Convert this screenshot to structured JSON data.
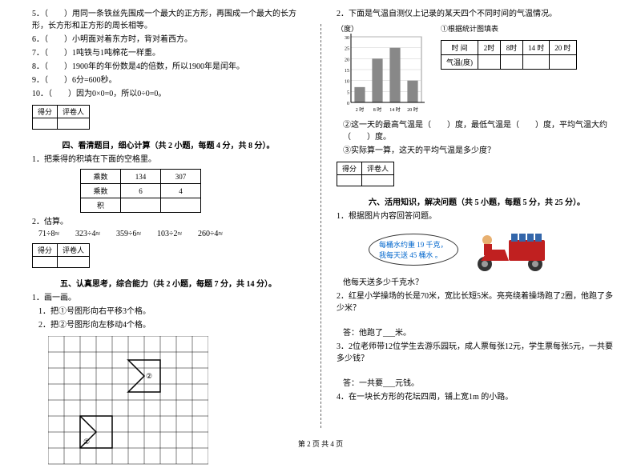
{
  "left": {
    "qs": [
      "5．（　　）用同一条铁丝先围成一个最大的正方形，再围成一个最大的长方形，长方形和正方形的周长相等。",
      "6．（　　）小明面对着东方时，背对着西方。",
      "7．（　　）1吨铁与1吨棉花一样重。",
      "8．（　　）1900年的年份数是4的倍数，所以1900年是闰年。",
      "9．（　　）6分=600秒。",
      "10．（　　）因为0×0=0，所以0÷0=0。"
    ],
    "score_h1": "得分",
    "score_h2": "评卷人",
    "sec4": "四、看清题目，细心计算（共 2 小题，每题 4 分，共 8 分）。",
    "q4_1": "1．把乘得的积填在下面的空格里。",
    "tbl": {
      "r1": [
        "乘数",
        "134",
        "307"
      ],
      "r2": [
        "乘数",
        "6",
        "4"
      ],
      "r3": [
        "积",
        "",
        ""
      ]
    },
    "q4_2": "2．估算。",
    "est": [
      "71÷8≈",
      "323÷4≈",
      "359÷6≈",
      "103÷2≈",
      "260÷4≈"
    ],
    "sec5": "五、认真思考，综合能力（共 2 小题，每题 7 分，共 14 分）。",
    "q5_1": "1．画一画。",
    "q5_1a": "1．把①号图形向右平移3个格。",
    "q5_1b": "2．把②号图形向左移动4个格。"
  },
  "right": {
    "q2": "2．下面是气温自测仪上记录的某天四个不同时间的气温情况。",
    "degree": "（度）",
    "chart_title": "①根据统计图填表",
    "chart": {
      "yticks": [
        "30",
        "25",
        "20",
        "15",
        "10",
        "5",
        "0"
      ],
      "xticks": [
        "2 时",
        "8 时",
        "14 时",
        "20 时"
      ],
      "bars": [
        7,
        20,
        25,
        10
      ],
      "ymax": 30,
      "bar_fill": "#888888",
      "frame": "#999999",
      "grid": "#cccccc"
    },
    "temp_tbl": {
      "r1": [
        "时 间",
        "2时",
        "8时",
        "14 时",
        "20 时"
      ],
      "r2": [
        "气温(度)",
        "",
        "",
        "",
        ""
      ]
    },
    "q2b": "②这一天的最高气温是（　　）度，最低气温是（　　）度，平均气温大约（　　）度。",
    "q2c": "③实际算一算，这天的平均气温是多少度？",
    "sec6": "六、活用知识，解决问题（共 5 小题，每题 5 分，共 25 分）。",
    "q6_1": "1．根据图片内容回答问题。",
    "bubble1": "每桶水约重 19 千克，",
    "bubble2": "我每天送 45 桶水 。",
    "q6_1a": "他每天送多少千克水？",
    "q6_2": "2．红星小学操场的长是70米，宽比长短5米。亮亮绕着操场跑了2圈，他跑了多少米？",
    "ans2": "答：他跑了___米。",
    "q6_3": "3．2位老师带12位学生去游乐园玩，成人票每张12元，学生票每张5元，一共要多少钱？",
    "ans3": "答：一共要___元钱。",
    "q6_4": "4．在一块长方形的花坛四周，铺上宽1m 的小路。"
  },
  "footer": "第 2 页 共 4 页",
  "colors": {
    "accent": "#336699"
  }
}
